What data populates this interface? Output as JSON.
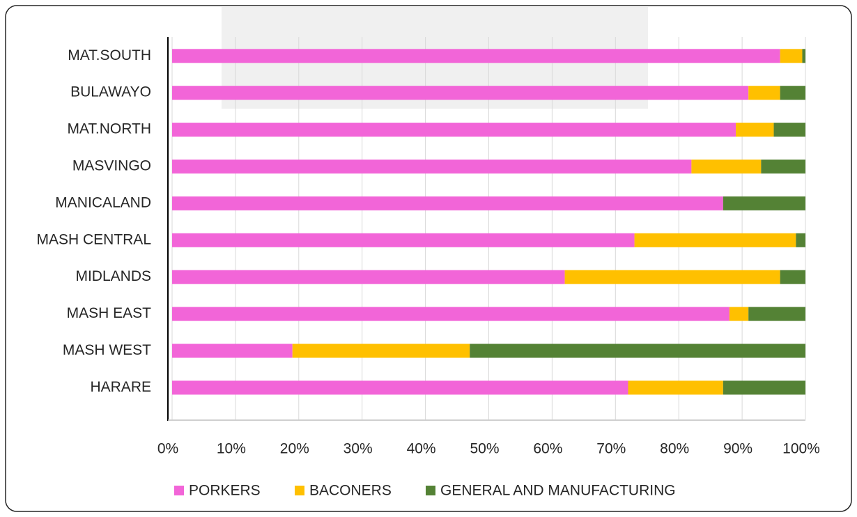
{
  "chart_data": {
    "type": "bar",
    "orientation": "horizontal",
    "stacked": true,
    "categories": [
      "MAT.SOUTH",
      "BULAWAYO",
      "MAT.NORTH",
      "MASVINGO",
      "MANICALAND",
      "MASH CENTRAL",
      "MIDLANDS",
      "MASH EAST",
      "MASH WEST",
      "HARARE"
    ],
    "series": [
      {
        "name": "PORKERS",
        "color": "#f265d8",
        "values": [
          96,
          91,
          89,
          82,
          87,
          73,
          62,
          88,
          19,
          72
        ]
      },
      {
        "name": "BACONERS",
        "color": "#ffc000",
        "values": [
          3.5,
          5,
          6,
          11,
          0,
          25.5,
          34,
          3,
          28,
          15
        ]
      },
      {
        "name": "GENERAL AND MANUFACTURING",
        "color": "#548235",
        "values": [
          0.5,
          4,
          5,
          7,
          13,
          1.5,
          4,
          9,
          53,
          13
        ]
      }
    ],
    "xlim": [
      0,
      100
    ],
    "xticks": [
      {
        "value": 0,
        "label": "0%"
      },
      {
        "value": 10,
        "label": "10%"
      },
      {
        "value": 20,
        "label": "20%"
      },
      {
        "value": 30,
        "label": "30%"
      },
      {
        "value": 40,
        "label": "40%"
      },
      {
        "value": 50,
        "label": "50%"
      },
      {
        "value": 60,
        "label": "60%"
      },
      {
        "value": 70,
        "label": "70%"
      },
      {
        "value": 80,
        "label": "80%"
      },
      {
        "value": 90,
        "label": "90%"
      },
      {
        "value": 100,
        "label": "100%"
      }
    ],
    "grid": true,
    "legend": "bottom"
  }
}
